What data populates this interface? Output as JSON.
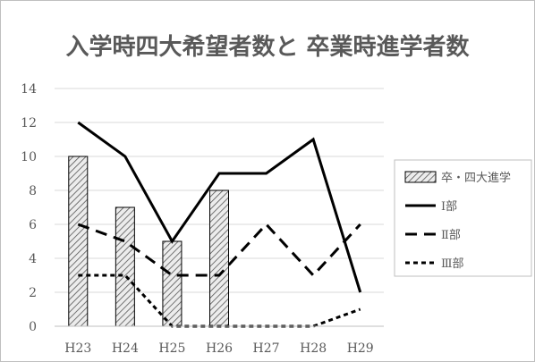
{
  "chart_data": {
    "type": "bar",
    "title": "入学時四大希望者数と 卒業時進学者数",
    "xlabel": "",
    "ylabel": "",
    "categories": [
      "H23",
      "H24",
      "H25",
      "H26",
      "H27",
      "H28",
      "H29"
    ],
    "ylim": [
      0,
      14
    ],
    "yticks": [
      0,
      2,
      4,
      6,
      8,
      10,
      12,
      14
    ],
    "grid": true,
    "legend_position": "right",
    "bars": {
      "name": "卒・四大進学",
      "values": [
        10,
        7,
        5,
        8,
        null,
        null,
        null
      ],
      "pattern": "diagonal-hatch"
    },
    "series": [
      {
        "name": "Ⅰ部",
        "type": "line",
        "style": "solid",
        "values": [
          12,
          10,
          5,
          9,
          9,
          11,
          2
        ]
      },
      {
        "name": "Ⅱ部",
        "type": "line",
        "style": "dashed",
        "values": [
          6,
          5,
          3,
          3,
          6,
          3,
          6
        ]
      },
      {
        "name": "Ⅲ部",
        "type": "line",
        "style": "dotted",
        "values": [
          3,
          3,
          0,
          0,
          0,
          0,
          1
        ]
      }
    ],
    "colors": {
      "line": "#000000",
      "axis": "#bfbfbf",
      "grid": "#d9d9d9",
      "bar_fill": "#e6e6e6",
      "bar_stroke": "#000000"
    }
  }
}
